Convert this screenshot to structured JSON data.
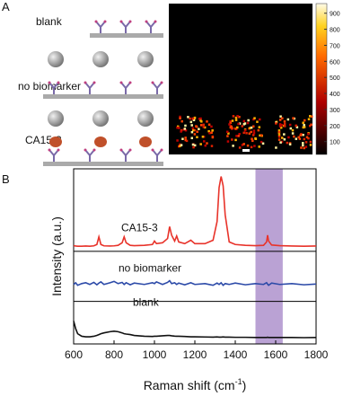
{
  "panel_a": {
    "label": "A",
    "rows": [
      "blank",
      "no biomarker",
      "CA15-3"
    ],
    "colorbar": {
      "lim": [
        20,
        960
      ],
      "ticks": [
        100,
        200,
        300,
        400,
        500,
        600,
        700,
        800,
        900
      ]
    }
  },
  "chart_data": {
    "type": "line",
    "panel_label": "B",
    "x_label": {
      "text": "Raman shift (cm",
      "sup": "-1",
      "end": ")"
    },
    "y_label": "Intensity (a.u.)",
    "xlim": [
      600,
      1800
    ],
    "xticks": [
      600,
      800,
      1000,
      1200,
      1400,
      1600,
      1800
    ],
    "ylim": [
      0,
      10.3
    ],
    "dividers": [
      5.45,
      2.5
    ],
    "highlight": [
      1500,
      1635
    ],
    "highlight_color": "#a98bc9",
    "x": [
      600,
      610,
      620,
      640,
      660,
      680,
      700,
      715,
      725,
      735,
      750,
      780,
      800,
      820,
      840,
      850,
      860,
      880,
      900,
      950,
      990,
      1000,
      1010,
      1040,
      1065,
      1075,
      1085,
      1100,
      1110,
      1120,
      1150,
      1180,
      1200,
      1250,
      1290,
      1310,
      1320,
      1330,
      1340,
      1350,
      1370,
      1400,
      1450,
      1500,
      1540,
      1555,
      1560,
      1565,
      1580,
      1620,
      1680,
      1740,
      1800
    ],
    "series": [
      {
        "name": "CA15-3",
        "color": "#e8332a",
        "values": [
          5.78,
          5.76,
          5.75,
          5.75,
          5.76,
          5.75,
          5.77,
          5.85,
          6.3,
          5.85,
          5.77,
          5.76,
          5.77,
          5.8,
          5.95,
          6.3,
          5.95,
          5.8,
          5.78,
          5.8,
          5.85,
          6.05,
          5.9,
          5.95,
          6.2,
          6.9,
          6.4,
          6.05,
          6.35,
          6.0,
          5.9,
          6.1,
          5.9,
          5.9,
          6.1,
          7.2,
          9.2,
          9.85,
          9.3,
          7.6,
          6.0,
          5.85,
          5.8,
          5.78,
          5.8,
          6.0,
          6.4,
          6.05,
          5.82,
          5.78,
          5.76,
          5.75,
          5.76
        ]
      },
      {
        "name": "no biomarker",
        "color": "#2c4aa8",
        "values": [
          3.5,
          3.6,
          3.45,
          3.55,
          3.6,
          3.5,
          3.62,
          3.48,
          3.58,
          3.65,
          3.5,
          3.6,
          3.68,
          3.55,
          3.62,
          3.5,
          3.6,
          3.48,
          3.58,
          3.5,
          3.6,
          3.55,
          3.65,
          3.5,
          3.62,
          3.72,
          3.55,
          3.6,
          3.5,
          3.58,
          3.48,
          3.6,
          3.5,
          3.55,
          3.45,
          3.58,
          3.5,
          3.6,
          3.45,
          3.55,
          3.5,
          3.58,
          3.48,
          3.55,
          3.5,
          3.6,
          3.52,
          3.45,
          3.58,
          3.5,
          3.55,
          3.48,
          3.52
        ]
      },
      {
        "name": "blank",
        "color": "#111111",
        "values": [
          1.35,
          0.9,
          0.6,
          0.45,
          0.42,
          0.42,
          0.45,
          0.5,
          0.55,
          0.6,
          0.65,
          0.72,
          0.75,
          0.72,
          0.65,
          0.6,
          0.58,
          0.55,
          0.5,
          0.45,
          0.44,
          0.45,
          0.45,
          0.48,
          0.5,
          0.5,
          0.48,
          0.46,
          0.45,
          0.45,
          0.44,
          0.42,
          0.42,
          0.41,
          0.4,
          0.41,
          0.4,
          0.4,
          0.41,
          0.4,
          0.4,
          0.39,
          0.39,
          0.38,
          0.38,
          0.38,
          0.39,
          0.38,
          0.38,
          0.38,
          0.38,
          0.37,
          0.38
        ]
      }
    ]
  }
}
